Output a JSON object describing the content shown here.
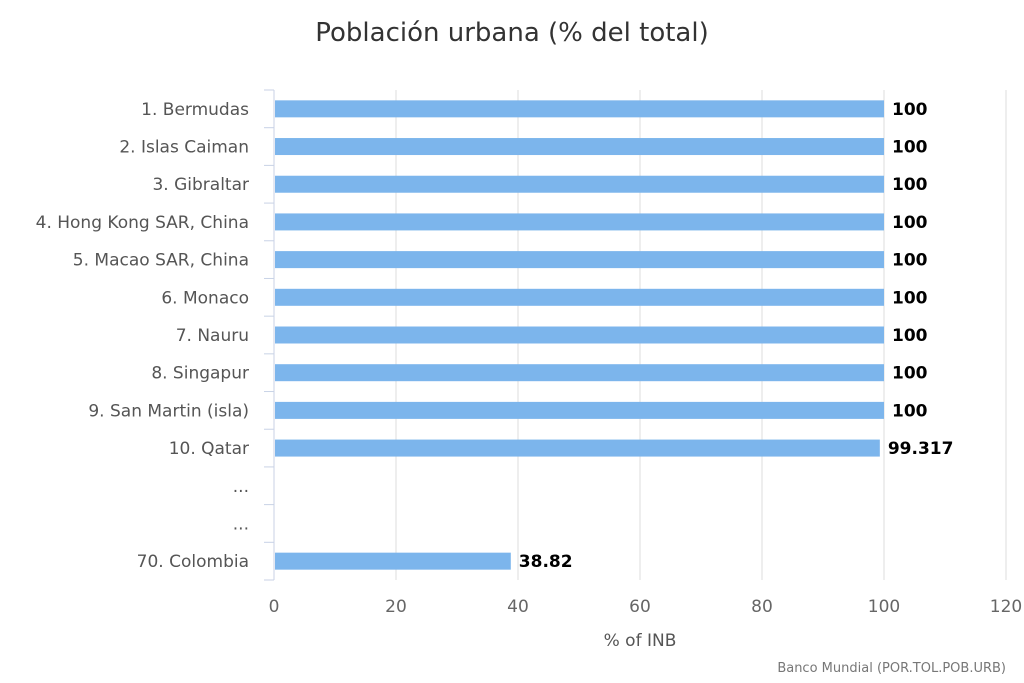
{
  "chart_data": {
    "type": "bar",
    "orientation": "horizontal",
    "title": "Población urbana (% del total)",
    "categories": [
      "1. Bermudas",
      "2. Islas Caiman",
      "3. Gibraltar",
      "4. Hong Kong SAR, China",
      "5. Macao SAR, China",
      "6. Monaco",
      "7. Nauru",
      "8. Singapur",
      "9. San Martin (isla)",
      "10. Qatar",
      "...",
      "...",
      "70. Colombia"
    ],
    "values": [
      100,
      100,
      100,
      100,
      100,
      100,
      100,
      100,
      100,
      99.317,
      null,
      null,
      38.82
    ],
    "value_labels": [
      "100",
      "100",
      "100",
      "100",
      "100",
      "100",
      "100",
      "100",
      "100",
      "99.317",
      "",
      "",
      "38.82"
    ],
    "xlabel": "% of INB",
    "ylabel": "",
    "xlim": [
      0,
      120
    ],
    "xticks": [
      0,
      20,
      40,
      60,
      80,
      100,
      120
    ],
    "grid": true,
    "bar_color": "#7cb5ec",
    "credit": "Banco Mundial (POR.TOL.POB.URB)"
  }
}
